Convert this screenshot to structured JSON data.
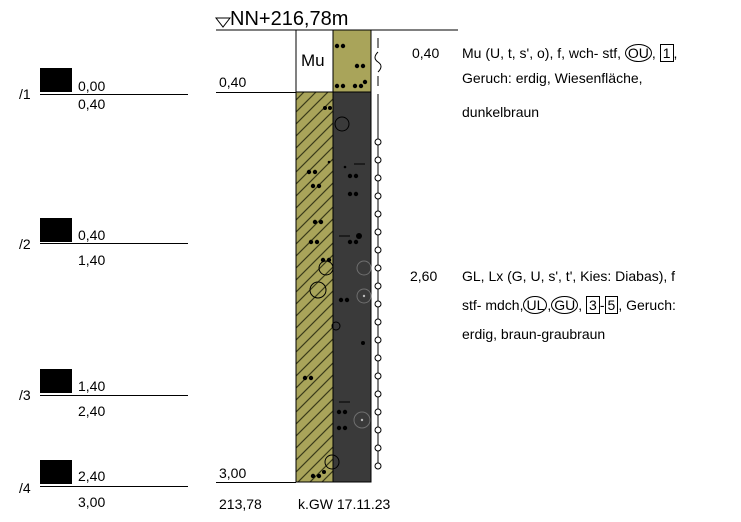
{
  "header": {
    "elevation_label": "NN+216,78m"
  },
  "samples": [
    {
      "id": "/1",
      "top": "0,00",
      "bottom": "0,40"
    },
    {
      "id": "/2",
      "top": "0,40",
      "bottom": "1,40"
    },
    {
      "id": "/3",
      "top": "1,40",
      "bottom": "2,40"
    },
    {
      "id": "/4",
      "top": "2,40",
      "bottom": "3,00"
    }
  ],
  "profile": {
    "depth_marks": [
      "0,40",
      "3,00"
    ],
    "bottom_elevation": "213,78",
    "groundwater": "k.GW 17.11.23",
    "layer1_symbol": "Mu"
  },
  "layers": [
    {
      "depth": "0,40",
      "line1_text": "Mu (U, t, s', o), f, wch- stf,",
      "badge_circle": "OU",
      "badge_box": "1",
      "line1_end": ",",
      "line2": "Geruch: erdig, Wiesenfläche,",
      "line3": "dunkelbraun"
    },
    {
      "depth": "2,60",
      "line1": "GL, Lx (G, U, s', t', Kies: Diabas), f",
      "line2_text": "stf- mdch,",
      "badge_circle_1": "UL",
      "badge_sep": ",",
      "badge_circle_2": "GU",
      "badge_box_1": "3",
      "badge_dash": "-",
      "badge_box_2": "5",
      "line2_end": ", Geruch:",
      "line3": "erdig, braun-graubraun"
    }
  ],
  "colors": {
    "olive": "#a9a45a",
    "dark": "#3a3a3a",
    "line": "#000000"
  }
}
